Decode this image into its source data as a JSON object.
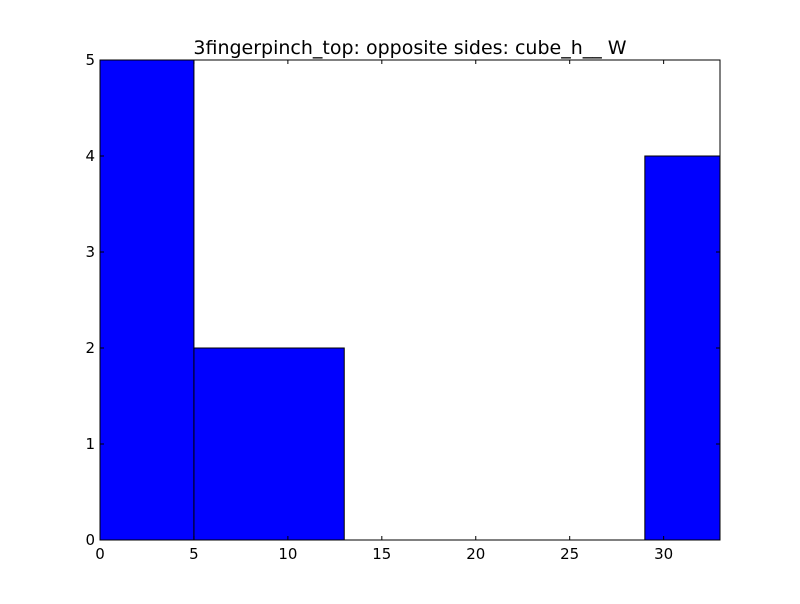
{
  "chart_data": {
    "type": "bar",
    "title": "3fingerpinch_top: opposite sides: cube_h__ W",
    "xlabel": "",
    "ylabel": "",
    "xlim": [
      0,
      33
    ],
    "ylim": [
      0,
      5
    ],
    "grid": false,
    "bars": [
      {
        "x_start": 0,
        "x_end": 5,
        "value": 5
      },
      {
        "x_start": 5,
        "x_end": 13,
        "value": 2
      },
      {
        "x_start": 29,
        "x_end": 33,
        "value": 4
      }
    ],
    "xticks": [
      0,
      5,
      10,
      15,
      20,
      25,
      30
    ],
    "yticks": [
      0,
      1,
      2,
      3,
      4,
      5
    ],
    "bar_color": "#0000ff",
    "edge_color": "#000000"
  }
}
